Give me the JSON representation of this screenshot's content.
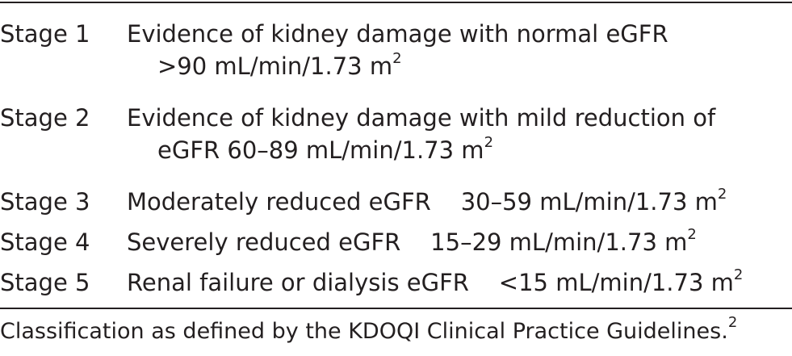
{
  "rows": [
    {
      "stage": "Stage 1",
      "line1": "Evidence of kidney damage with normal eGFR",
      "line2": ">90 mL/min/1.73 m",
      "sup": "2"
    },
    {
      "stage": "Stage 2",
      "line1": "Evidence of kidney damage with mild reduction of",
      "line2": "eGFR 60–89 mL/min/1.73 m",
      "sup": "2"
    },
    {
      "stage": "Stage 3",
      "line1": "Moderately reduced eGFR    30–59 mL/min/1.73 m",
      "sup": "2"
    },
    {
      "stage": "Stage 4",
      "line1": "Severely reduced eGFR    15–29 mL/min/1.73 m",
      "sup": "2"
    },
    {
      "stage": "Stage 5",
      "line1": "Renal failure or dialysis eGFR    <15 mL/min/1.73 m",
      "sup": "2"
    }
  ],
  "footnote": {
    "text": "Classification as defined by the KDOQI Clinical Practice Guidelines.",
    "sup": "2"
  }
}
